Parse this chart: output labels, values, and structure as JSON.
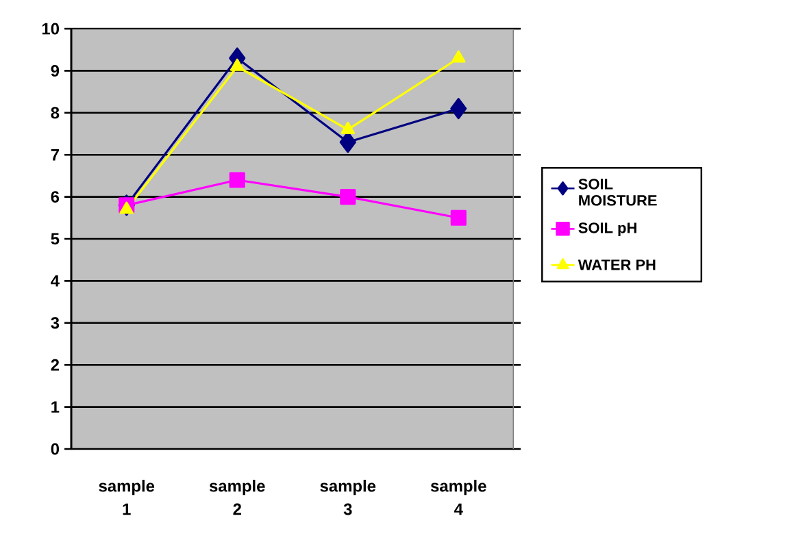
{
  "chart_data": {
    "type": "line",
    "categories": [
      "sample 1",
      "sample 2",
      "sample 3",
      "sample 4"
    ],
    "series": [
      {
        "name": "SOIL MOISTURE",
        "color": "#000080",
        "marker": "diamond",
        "values": [
          5.8,
          9.3,
          7.3,
          8.1
        ]
      },
      {
        "name": "SOIL pH",
        "color": "#ff00ff",
        "marker": "square",
        "values": [
          5.8,
          6.4,
          6.0,
          5.5
        ]
      },
      {
        "name": "WATER PH",
        "color": "#ffff00",
        "marker": "triangle",
        "values": [
          5.7,
          9.1,
          7.6,
          9.3
        ]
      }
    ],
    "ylim": [
      0,
      10
    ],
    "yticks": [
      0,
      1,
      2,
      3,
      4,
      5,
      6,
      7,
      8,
      9,
      10
    ],
    "grid": "y",
    "legend": "right"
  }
}
